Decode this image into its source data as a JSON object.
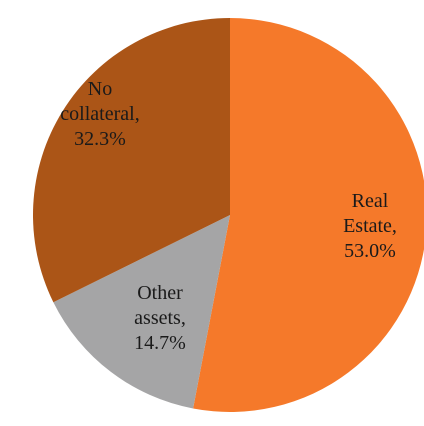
{
  "chart_data": {
    "type": "pie",
    "start_angle_deg": 0,
    "direction": "clockwise",
    "slices": [
      {
        "label": "Real Estate",
        "value": 53.0,
        "value_label": "53.0%",
        "color": "#F5792A",
        "label_lines": [
          "Real",
          "Estate,",
          "53.0%"
        ]
      },
      {
        "label": "Other assets",
        "value": 14.7,
        "value_label": "14.7%",
        "color": "#A5A5A6",
        "label_lines": [
          "Other",
          "assets,",
          "14.7%"
        ]
      },
      {
        "label": "No collateral",
        "value": 32.3,
        "value_label": "32.3%",
        "color": "#AB5517",
        "label_lines": [
          "No",
          "collateral,",
          "32.3%"
        ]
      }
    ]
  }
}
